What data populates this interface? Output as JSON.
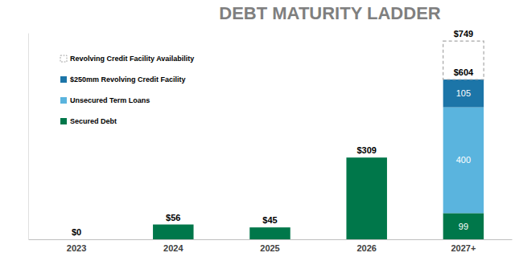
{
  "chart_data": {
    "type": "bar",
    "title": "DEBT MATURITY LADDER",
    "categories": [
      "2023",
      "2024",
      "2025",
      "2026",
      "2027+"
    ],
    "stacked": true,
    "data_labels": true,
    "legend": "upper left",
    "tick_labels": "x",
    "grid": false,
    "ylim": [
      0,
      780
    ],
    "yticks": [],
    "series": [
      {
        "name": "Secured Debt",
        "color": "#00774a",
        "values": [
          0,
          56,
          45,
          309,
          99
        ],
        "value_labels": [
          null,
          null,
          null,
          null,
          "99"
        ]
      },
      {
        "name": "Unsecured Term Loans",
        "color": "#5ab4de",
        "values": [
          null,
          null,
          null,
          null,
          400
        ],
        "value_labels": [
          null,
          null,
          null,
          null,
          "400"
        ]
      },
      {
        "name": "$250mm Revolving Credit Facility",
        "color": "#1c75a8",
        "values": [
          null,
          null,
          null,
          null,
          105
        ],
        "value_labels": [
          null,
          null,
          null,
          null,
          "105"
        ]
      },
      {
        "name": "Revolving Credit Facility Availability",
        "color": "#a6a6a6",
        "line_style": "dashed",
        "values": [
          null,
          null,
          null,
          null,
          145
        ]
      }
    ],
    "totals": {
      "values": [
        0,
        56,
        45,
        309,
        604
      ],
      "value_labels": [
        "$0",
        "$56",
        "$45",
        "$309",
        "$604"
      ]
    },
    "available_capacity": {
      "value": 749,
      "label": "$749"
    }
  }
}
